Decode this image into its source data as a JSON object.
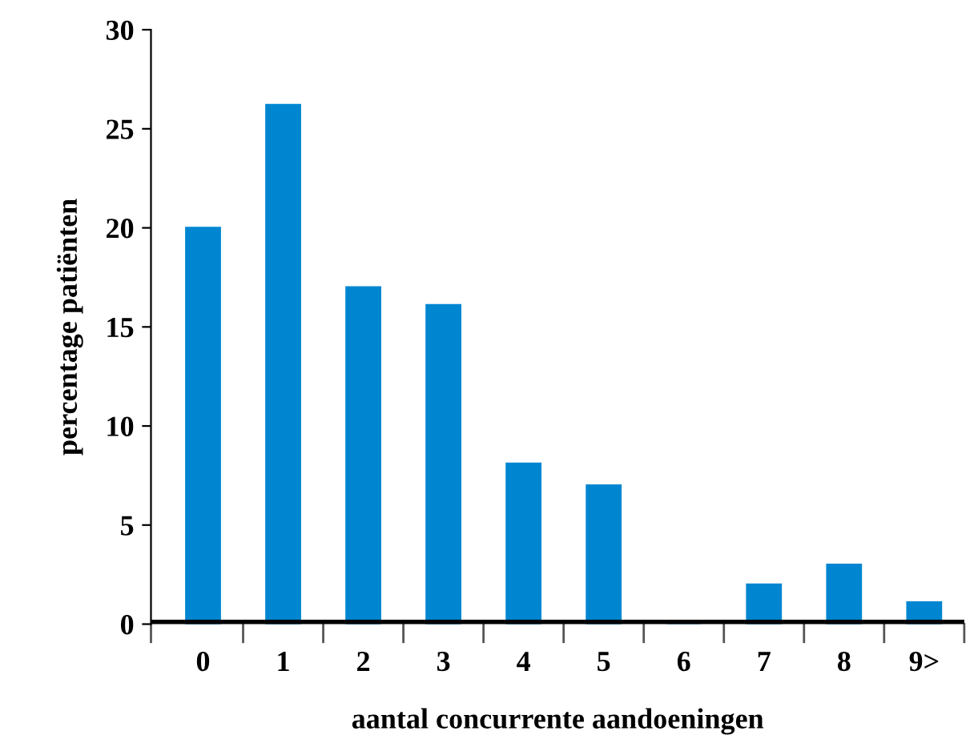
{
  "chart_data": {
    "type": "bar",
    "xlabel": "aantal concurrente aandoeningen",
    "ylabel": "percentage patiënten",
    "categories": [
      "0",
      "1",
      "2",
      "3",
      "4",
      "5",
      "6",
      "7",
      "8",
      "9>"
    ],
    "values": [
      20.0,
      26.2,
      17.0,
      16.1,
      8.1,
      7.0,
      0,
      2.0,
      3.0,
      1.1
    ],
    "color": "#0086d1",
    "ylim": [
      0,
      30
    ],
    "yticks": [
      0,
      5,
      10,
      15,
      20,
      25,
      30
    ],
    "grid": false
  }
}
